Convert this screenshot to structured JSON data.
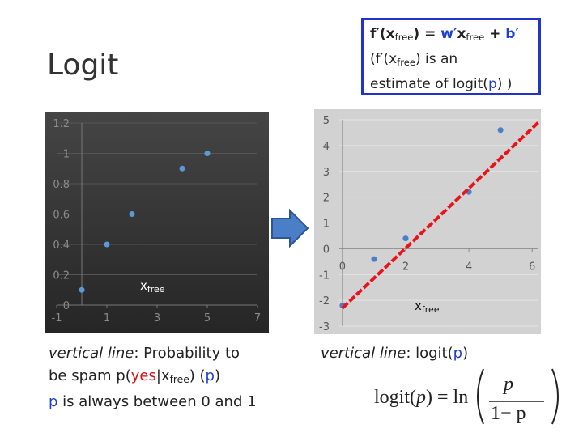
{
  "title": "Logit",
  "box": {
    "lines": [
      [
        {
          "text": "f′(x"
        },
        {
          "text": "free",
          "style": "sub"
        },
        {
          "text": ") = "
        },
        {
          "text": "w′",
          "style": "blue"
        },
        {
          "text": "x"
        },
        {
          "text": "free",
          "style": "sub"
        },
        {
          "text": " + "
        },
        {
          "text": "b′",
          "style": "blue"
        }
      ],
      [
        {
          "text": "(f′(x"
        },
        {
          "text": "free",
          "style": "sub"
        },
        {
          "text": ") is an"
        }
      ],
      [
        {
          "text": "estimate of logit("
        },
        {
          "text": "p",
          "style": "blue"
        },
        {
          "text": ") )"
        }
      ]
    ]
  },
  "left_caption": {
    "lines": [
      [
        {
          "text": "vertical line",
          "style": "iu"
        },
        {
          "text": ": Probability to"
        }
      ],
      [
        {
          "text": "be spam p("
        },
        {
          "text": "yes",
          "style": "red"
        },
        {
          "text": "|x"
        },
        {
          "text": "free",
          "style": "sub"
        },
        {
          "text": ") ("
        },
        {
          "text": "p",
          "style": "blue"
        },
        {
          "text": ")"
        }
      ],
      [
        {
          "text": "p",
          "style": "blue"
        },
        {
          "text": " is always between 0 and 1"
        }
      ]
    ]
  },
  "right_caption": {
    "lines": [
      [
        {
          "text": "vertical line",
          "style": "iu"
        },
        {
          "text": ": logit("
        },
        {
          "text": "p",
          "style": "blue"
        },
        {
          "text": ")"
        }
      ]
    ]
  },
  "formula": {
    "lead": [
      {
        "text": "logit("
      },
      {
        "text": "p",
        "style": "it"
      },
      {
        "text": ") = ln"
      }
    ],
    "num": "p",
    "den": "1− p"
  },
  "chart_data": [
    {
      "type": "scatter",
      "x": [
        0,
        1,
        2,
        4,
        5
      ],
      "values": [
        0.1,
        0.4,
        0.6,
        0.9,
        1.0
      ],
      "color": "#5b9bd5",
      "x_label": {
        "text": "x",
        "sub": "free"
      },
      "xlim": [
        -1,
        7
      ],
      "xticks": [
        -1,
        1,
        3,
        5,
        7
      ],
      "ylim": [
        0,
        1.2
      ],
      "yticks": [
        0,
        0.2,
        0.4,
        0.6,
        0.8,
        1,
        1.2
      ],
      "grid": true
    },
    {
      "type": "scatter",
      "x": [
        0,
        1,
        2,
        4,
        5
      ],
      "values": [
        -2.2,
        -0.4,
        0.4,
        2.2,
        4.6
      ],
      "color": "#4a7ec7",
      "x_label": {
        "text": "x",
        "sub": "free"
      },
      "trend_line": {
        "x": [
          0,
          6.2
        ],
        "values": [
          -2.3,
          4.9
        ],
        "color": "#e8141c"
      },
      "xlim": [
        -0.1,
        6.2
      ],
      "xticks": [
        0,
        2,
        4,
        6
      ],
      "ylim": [
        -3,
        5
      ],
      "yticks": [
        -3,
        -2,
        -1,
        0,
        1,
        2,
        3,
        4,
        5
      ],
      "grid": true
    }
  ]
}
